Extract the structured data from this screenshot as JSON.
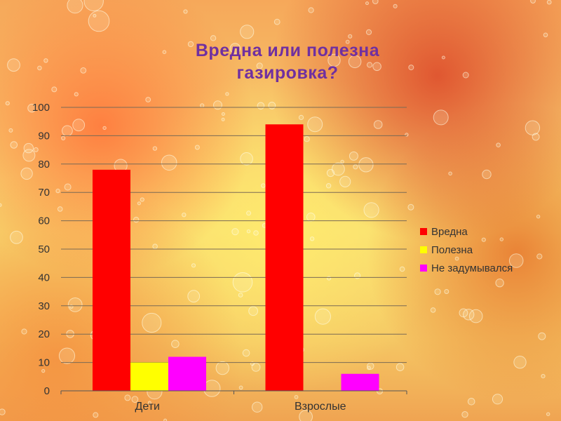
{
  "slide": {
    "title_line1": "Вредна или полезна",
    "title_line2": "газировка?"
  },
  "chart_data": {
    "type": "bar",
    "title": "Вредна или полезна газировка?",
    "categories": [
      "Дети",
      "Взрослые"
    ],
    "series": [
      {
        "name": "Вредна",
        "values": [
          78,
          94
        ],
        "color": "#ff0000"
      },
      {
        "name": "Полезна",
        "values": [
          10,
          0
        ],
        "color": "#ffff00"
      },
      {
        "name": "Не задумывался",
        "values": [
          12,
          6
        ],
        "color": "#ff00ff"
      }
    ],
    "ylim": [
      0,
      100
    ],
    "yticks": [
      0,
      10,
      20,
      30,
      40,
      50,
      60,
      70,
      80,
      90,
      100
    ],
    "grid": true,
    "legend": "right",
    "xlabel": "",
    "ylabel": ""
  }
}
